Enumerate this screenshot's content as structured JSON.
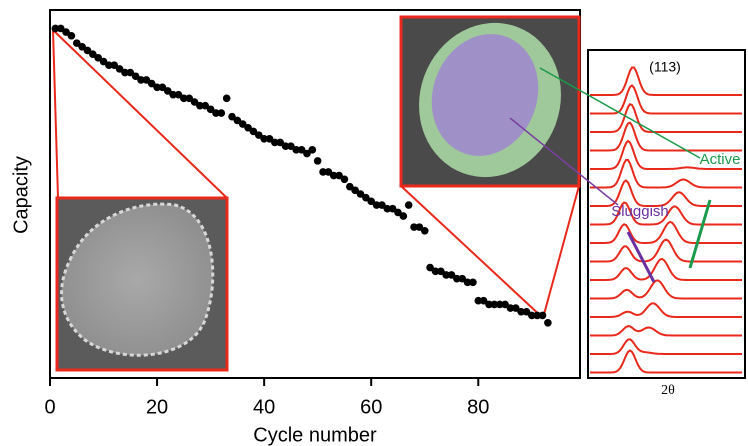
{
  "chart_data": [
    {
      "type": "scatter",
      "x_label": "Cycle number",
      "y_label": "Capacity",
      "color": "#000000",
      "x": [
        1,
        2,
        3,
        4,
        5,
        6,
        7,
        8,
        9,
        10,
        11,
        12,
        13,
        14,
        15,
        16,
        17,
        18,
        19,
        20,
        21,
        22,
        23,
        24,
        25,
        26,
        27,
        28,
        29,
        30,
        31,
        32,
        33,
        34,
        35,
        36,
        37,
        38,
        39,
        40,
        41,
        42,
        43,
        44,
        45,
        46,
        47,
        48,
        49,
        50,
        51,
        52,
        53,
        54,
        55,
        56,
        57,
        58,
        59,
        60,
        61,
        62,
        63,
        64,
        65,
        66,
        67,
        68,
        69,
        70,
        71,
        72,
        73,
        74,
        75,
        76,
        77,
        78,
        79,
        80,
        81,
        82,
        83,
        84,
        85,
        86,
        87,
        88,
        89,
        90,
        91,
        92,
        93
      ],
      "values": [
        95,
        95,
        94,
        93,
        91,
        90,
        89,
        88,
        87,
        86,
        85,
        85,
        84,
        83,
        83,
        82,
        81,
        81,
        80,
        79,
        79,
        78,
        77,
        77,
        76,
        76,
        75,
        74,
        74,
        73,
        72,
        72,
        76,
        71,
        70,
        69,
        68,
        67,
        66,
        65,
        65,
        64,
        64,
        63,
        63,
        62,
        62,
        61,
        62,
        59,
        56,
        56,
        55,
        55,
        54,
        52,
        51,
        50,
        49,
        48,
        47,
        47,
        46,
        46,
        45,
        44,
        47,
        41,
        41,
        40,
        30,
        29,
        29,
        28,
        28,
        27,
        27,
        26,
        26,
        21,
        21,
        20,
        20,
        20,
        20,
        19,
        19,
        18,
        18,
        17,
        17,
        17,
        15
      ],
      "xlim": [
        0,
        99
      ],
      "ylim": [
        0,
        100
      ],
      "xticks": [
        0,
        20,
        40,
        60,
        80
      ]
    },
    {
      "type": "waterfall",
      "x_label": "2θ",
      "peak_label": "(113)",
      "color": "#e8291c",
      "annotations": [
        "Active",
        "Sluggish"
      ]
    }
  ]
}
